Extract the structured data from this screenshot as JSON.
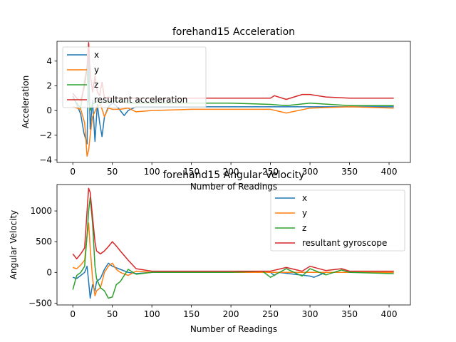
{
  "chart_data": [
    {
      "type": "line",
      "title": "forehand15 Acceleration",
      "xlabel": "Number of Readings",
      "ylabel": "Acceleration",
      "xlim": [
        -20,
        427
      ],
      "ylim": [
        -4.2,
        5.6
      ],
      "x_ticks": [
        0,
        50,
        100,
        150,
        200,
        250,
        300,
        350,
        400
      ],
      "y_ticks": [
        -4,
        -2,
        0,
        2,
        4
      ],
      "grid": false,
      "legend_position": "top-left",
      "series": [
        {
          "name": "x",
          "color": "#1f77b4",
          "x": [
            0,
            5,
            10,
            14,
            18,
            20,
            22,
            25,
            28,
            31,
            34,
            37,
            40,
            45,
            50,
            55,
            60,
            65,
            70,
            80,
            100,
            150,
            200,
            250,
            300,
            350,
            406
          ],
          "y": [
            1.2,
            0.5,
            -0.3,
            -1.8,
            -2.7,
            4.5,
            -1.5,
            0.8,
            -2.5,
            0.5,
            -1.0,
            -2.1,
            -0.5,
            0.3,
            0.6,
            0.4,
            0.0,
            -0.4,
            0.0,
            0.3,
            0.3,
            0.3,
            0.3,
            0.3,
            0.3,
            0.3,
            0.3
          ]
        },
        {
          "name": "y",
          "color": "#ff7f0e",
          "x": [
            0,
            5,
            10,
            15,
            18,
            20,
            22,
            25,
            30,
            35,
            40,
            45,
            50,
            60,
            70,
            80,
            100,
            150,
            200,
            250,
            270,
            300,
            350,
            406
          ],
          "y": [
            0.3,
            0.2,
            0.1,
            -1.0,
            -3.7,
            -3.2,
            -2.0,
            -0.5,
            0.2,
            0.5,
            -0.5,
            0.2,
            0.1,
            0.1,
            0.2,
            -0.1,
            0.0,
            0.1,
            0.1,
            0.1,
            -0.2,
            0.2,
            0.3,
            0.2
          ]
        },
        {
          "name": "z",
          "color": "#2ca02c",
          "x": [
            0,
            5,
            10,
            15,
            18,
            20,
            22,
            25,
            30,
            35,
            40,
            45,
            50,
            60,
            70,
            80,
            100,
            150,
            200,
            250,
            270,
            300,
            350,
            406
          ],
          "y": [
            1.0,
            0.6,
            0.2,
            2.5,
            3.5,
            1.0,
            0.0,
            0.5,
            0.7,
            0.6,
            0.7,
            0.6,
            0.8,
            0.7,
            0.6,
            0.6,
            0.6,
            0.6,
            0.6,
            0.5,
            0.4,
            0.6,
            0.4,
            0.4
          ]
        },
        {
          "name": "resultant acceleration",
          "color": "#d62728",
          "x": [
            0,
            5,
            10,
            15,
            18,
            20,
            22,
            25,
            28,
            31,
            34,
            37,
            40,
            45,
            50,
            60,
            70,
            80,
            100,
            150,
            200,
            250,
            255,
            270,
            290,
            300,
            320,
            350,
            380,
            406
          ],
          "y": [
            1.4,
            1.0,
            0.8,
            2.0,
            3.5,
            5.5,
            3.0,
            1.5,
            2.8,
            1.5,
            1.2,
            2.3,
            1.0,
            1.1,
            1.0,
            1.0,
            1.0,
            1.0,
            1.0,
            1.0,
            1.0,
            1.0,
            1.2,
            0.9,
            1.3,
            1.3,
            1.1,
            1.0,
            1.0,
            1.0
          ]
        }
      ]
    },
    {
      "type": "line",
      "title": "forehand15 Angular Velocity",
      "xlabel": "Number of Readings",
      "ylabel": "Angular Velocity",
      "xlim": [
        -20,
        427
      ],
      "ylim": [
        -530,
        1430
      ],
      "x_ticks": [
        0,
        50,
        100,
        150,
        200,
        250,
        300,
        350,
        400
      ],
      "y_ticks": [
        -500,
        0,
        500,
        1000
      ],
      "grid": false,
      "legend_position": "top-right",
      "series": [
        {
          "name": "x",
          "color": "#1f77b4",
          "x": [
            0,
            5,
            10,
            15,
            18,
            20,
            22,
            25,
            28,
            30,
            35,
            40,
            45,
            50,
            60,
            70,
            80,
            100,
            150,
            200,
            250,
            255,
            260,
            300,
            305,
            320,
            350,
            406
          ],
          "y": [
            -80,
            -100,
            -50,
            0,
            100,
            -150,
            -420,
            -200,
            -300,
            -150,
            -100,
            50,
            150,
            100,
            50,
            0,
            -20,
            0,
            0,
            0,
            0,
            -50,
            0,
            -60,
            -80,
            0,
            0,
            0
          ]
        },
        {
          "name": "y",
          "color": "#ff7f0e",
          "x": [
            0,
            5,
            10,
            15,
            18,
            20,
            22,
            25,
            28,
            30,
            35,
            40,
            45,
            50,
            55,
            60,
            70,
            80,
            100,
            150,
            200,
            250,
            300,
            350,
            406
          ],
          "y": [
            80,
            60,
            120,
            200,
            600,
            800,
            400,
            -100,
            -380,
            -300,
            -250,
            0,
            100,
            150,
            50,
            0,
            -50,
            20,
            0,
            0,
            0,
            0,
            0,
            0,
            0
          ]
        },
        {
          "name": "z",
          "color": "#2ca02c",
          "x": [
            0,
            5,
            10,
            15,
            18,
            20,
            22,
            25,
            28,
            30,
            35,
            40,
            45,
            50,
            55,
            60,
            70,
            80,
            100,
            150,
            200,
            240,
            250,
            270,
            290,
            300,
            320,
            340,
            350,
            406
          ],
          "y": [
            -280,
            -50,
            0,
            100,
            600,
            1000,
            1220,
            800,
            100,
            -100,
            -250,
            -300,
            -420,
            -400,
            -200,
            -150,
            50,
            -30,
            0,
            0,
            0,
            20,
            -80,
            60,
            -60,
            60,
            -40,
            40,
            0,
            -20
          ]
        },
        {
          "name": "resultant gyroscope",
          "color": "#d62728",
          "x": [
            0,
            5,
            10,
            15,
            18,
            20,
            22,
            25,
            28,
            30,
            35,
            40,
            45,
            50,
            55,
            60,
            70,
            80,
            100,
            150,
            200,
            250,
            270,
            290,
            300,
            320,
            340,
            350,
            406
          ],
          "y": [
            300,
            220,
            300,
            400,
            1000,
            1370,
            1300,
            900,
            500,
            350,
            300,
            350,
            420,
            500,
            430,
            350,
            200,
            60,
            20,
            20,
            20,
            20,
            80,
            20,
            100,
            30,
            60,
            20,
            20
          ]
        }
      ]
    }
  ]
}
